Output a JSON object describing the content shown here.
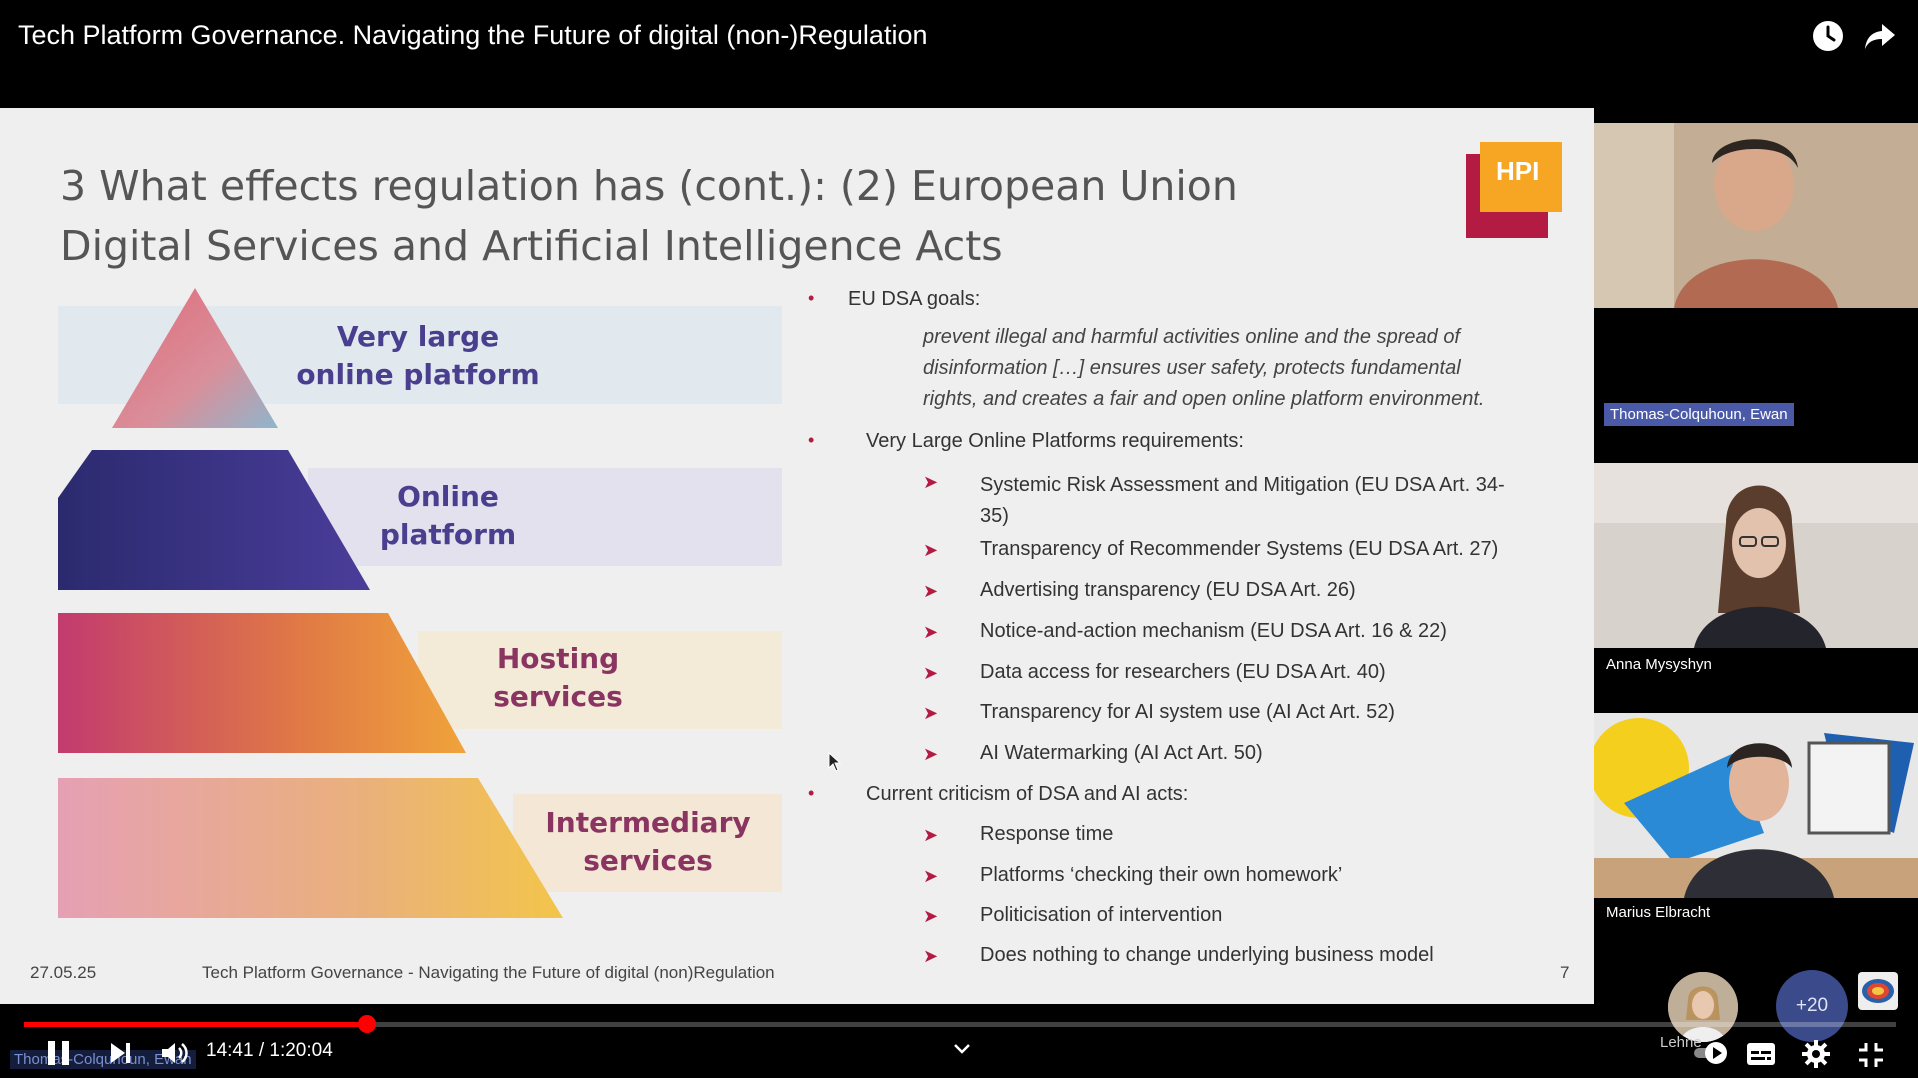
{
  "player": {
    "title": "Tech Platform Governance. Navigating the Future of digital (non-)Regulation",
    "time_current": "14:41",
    "time_separator": " / ",
    "time_total": "1:20:04",
    "progress_fraction": 0.1833,
    "accent_color": "#ff0000"
  },
  "slide": {
    "title_line1": "3 What effects regulation has (cont.): (2) European Union",
    "title_line2": "Digital Services and Artificial Intelligence Acts",
    "logo_text": "HPI",
    "pyramid": {
      "level1": [
        "Very large",
        "online platform"
      ],
      "level2": [
        "Online",
        "platform"
      ],
      "level3": [
        "Hosting",
        "services"
      ],
      "level4": [
        "Intermediary",
        "services"
      ]
    },
    "dsa_goals_label": "EU DSA goals:",
    "dsa_goals_quote": [
      "prevent illegal and harmful activities online and the spread of",
      "disinformation […] ensures user safety, protects fundamental",
      "rights, and creates a fair and open online platform environment."
    ],
    "vlop_label": "Very Large Online Platforms requirements:",
    "vlop_items": [
      [
        "Systemic Risk Assessment and Mitigation (EU DSA Art. 34-",
        "35)"
      ],
      [
        "Transparency of Recommender Systems (EU DSA Art. 27)"
      ],
      [
        "Advertising transparency (EU DSA Art. 26)"
      ],
      [
        "Notice-and-action mechanism (EU DSA Art. 16 & 22)"
      ],
      [
        "Data access for researchers (EU DSA Art. 40)"
      ],
      [
        "Transparency for AI system use (AI Act Art. 52)"
      ],
      [
        "AI Watermarking (AI Act Art. 50)"
      ]
    ],
    "criticism_label": "Current criticism of DSA and AI acts:",
    "criticism_items": [
      "Response time",
      "Platforms ‘checking their own homework’",
      "Politicisation of intervention",
      "Does nothing to change underlying business model"
    ],
    "footer_date": "27.05.25",
    "footer_title": "Tech Platform Governance - Navigating the Future of digital (non)Regulation",
    "page_number": "7"
  },
  "participants": [
    {
      "name": "Thomas-Colquhoun, Ewan"
    },
    {
      "name": "Anna Mysyshyn"
    },
    {
      "name": "Marius Elbracht"
    }
  ],
  "participant_strip": {
    "partial_name": "Lehne",
    "overflow_count": "+20"
  },
  "ghost_label": "Thomas-Colquhoun, Ewan"
}
